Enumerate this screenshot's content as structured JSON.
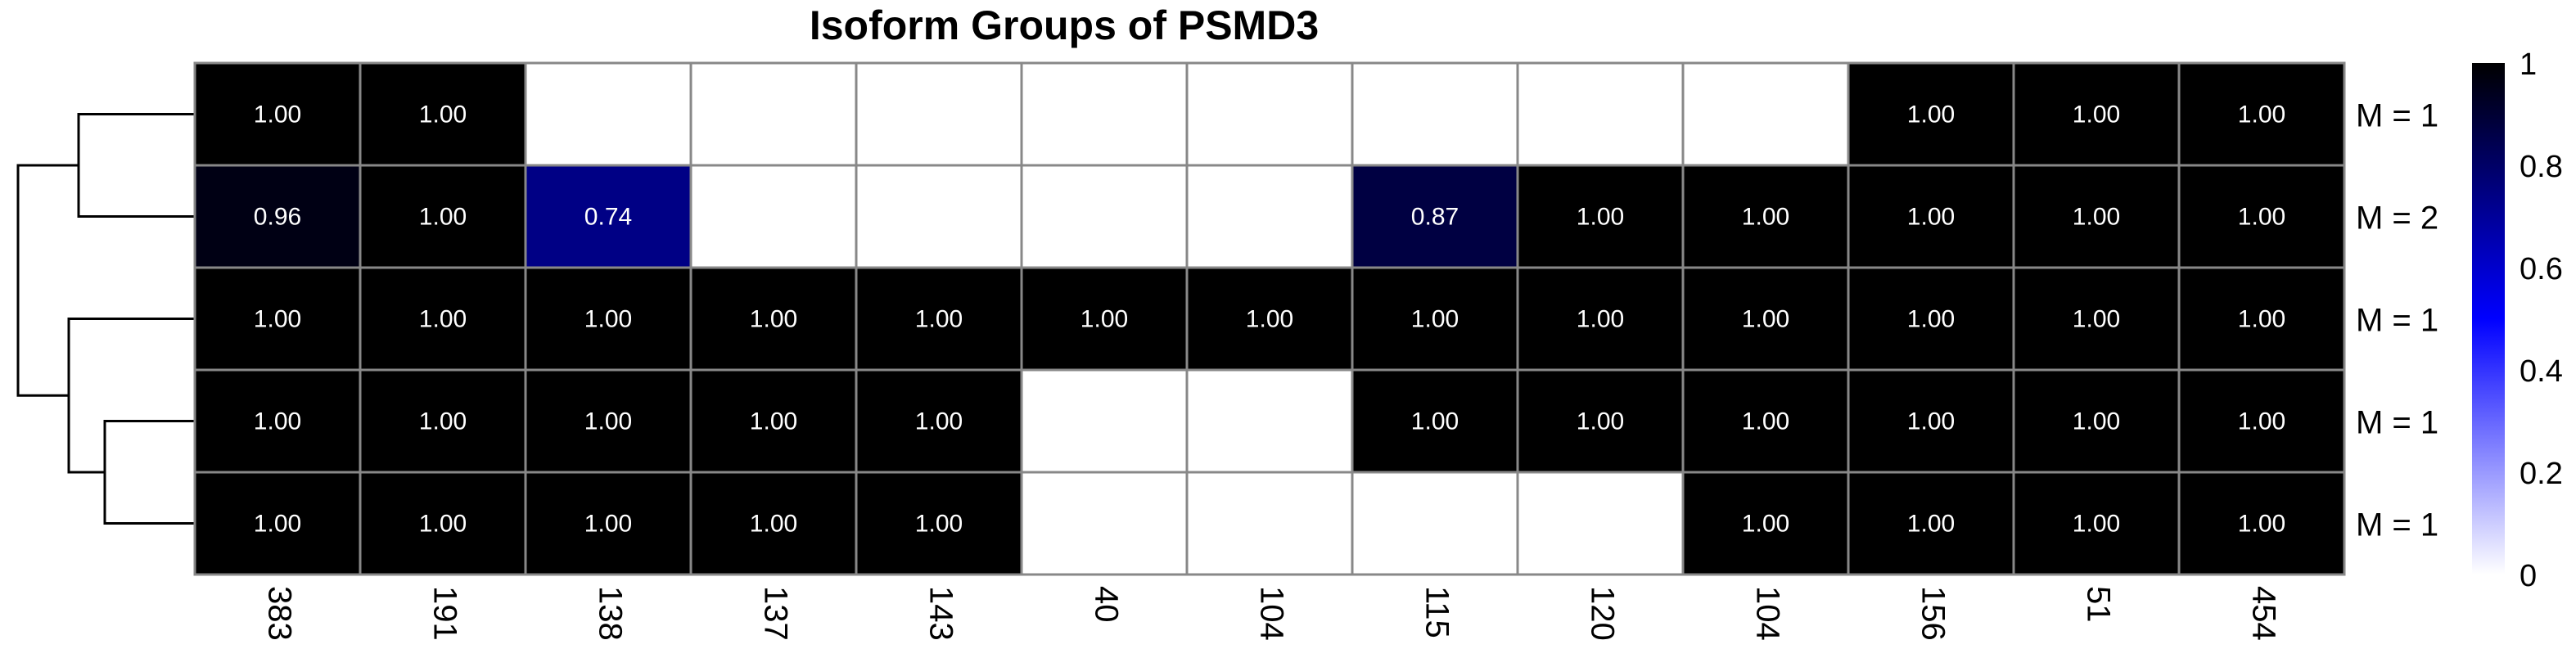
{
  "chart_data": {
    "type": "heatmap",
    "title": "Isoform Groups of PSMD3",
    "columns": [
      "383",
      "191",
      "138",
      "137",
      "143",
      "40",
      "104",
      "115",
      "120",
      "104",
      "156",
      "51",
      "454"
    ],
    "rows": [
      "M = 1",
      "M = 2",
      "M = 1",
      "M = 1",
      "M = 1"
    ],
    "values": [
      [
        1.0,
        1.0,
        null,
        null,
        null,
        null,
        null,
        null,
        null,
        null,
        1.0,
        1.0,
        1.0
      ],
      [
        0.96,
        1.0,
        0.74,
        null,
        null,
        null,
        null,
        0.87,
        1.0,
        1.0,
        1.0,
        1.0,
        1.0
      ],
      [
        1.0,
        1.0,
        1.0,
        1.0,
        1.0,
        1.0,
        1.0,
        1.0,
        1.0,
        1.0,
        1.0,
        1.0,
        1.0
      ],
      [
        1.0,
        1.0,
        1.0,
        1.0,
        1.0,
        null,
        null,
        1.0,
        1.0,
        1.0,
        1.0,
        1.0,
        1.0
      ],
      [
        1.0,
        1.0,
        1.0,
        1.0,
        1.0,
        null,
        null,
        null,
        null,
        1.0,
        1.0,
        1.0,
        1.0
      ]
    ],
    "colorbar": {
      "ticks": [
        "0",
        "0.2",
        "0.4",
        "0.6",
        "0.8",
        "1"
      ],
      "range": [
        0,
        1
      ],
      "colors": {
        "low": "#ffffff",
        "mid": "#0000ff",
        "high": "#000000"
      }
    },
    "dendrogram": {
      "side": "left",
      "merge_order": [
        [
          3,
          4
        ],
        [
          2,
          "3+4"
        ],
        [
          0,
          1
        ],
        [
          "0+1",
          "2+3+4"
        ]
      ]
    },
    "grid": true,
    "grid_color": "#888888"
  }
}
